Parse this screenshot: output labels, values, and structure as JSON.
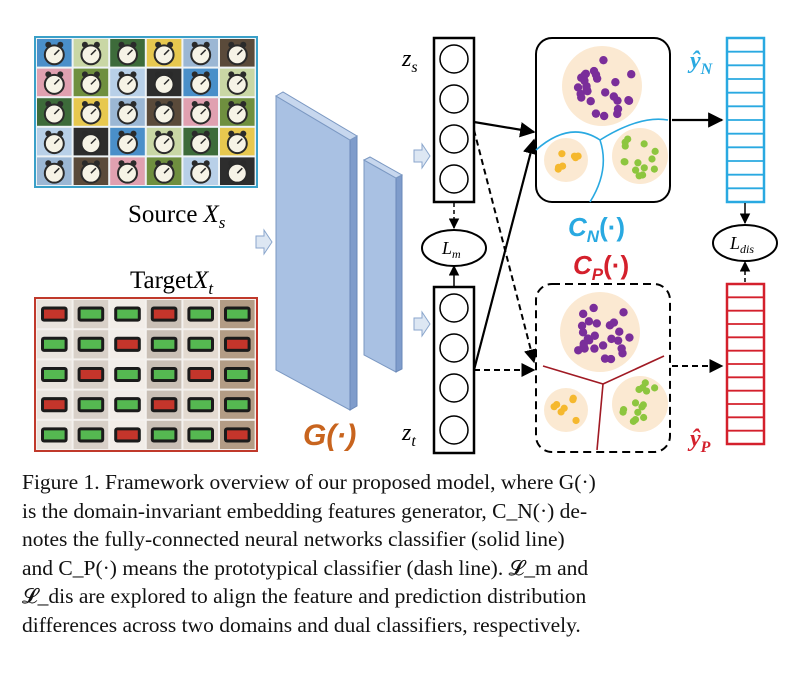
{
  "labels": {
    "source": "Source",
    "source_var": "X",
    "source_sub": "s",
    "target": "Target",
    "target_var": "X",
    "target_sub": "t",
    "generator": "G(·)",
    "zs": "z",
    "zs_sub": "s",
    "zt": "z",
    "zt_sub": "t",
    "lm": "L",
    "lm_sub": "m",
    "ldis": "L",
    "ldis_sub": "dis",
    "cn": "C",
    "cn_sub": "N",
    "cn_arg": "(·)",
    "cp": "C",
    "cp_sub": "P",
    "cp_arg": "(·)",
    "yn": "ŷ",
    "yn_sub": "N",
    "yp": "ŷ",
    "yp_sub": "P"
  },
  "colors": {
    "cn_accent": "#29a9e1",
    "cp_accent": "#d4202c",
    "generator": "#c8641e",
    "source_border": "#3aa0c8",
    "target_border": "#c0392b",
    "block_fill": "#a9c1e3",
    "cluster_purple": "#7a2e9a",
    "cluster_green": "#8dc63f",
    "cluster_orange": "#f5b82e",
    "cluster_bg": "#fbe9d2"
  },
  "caption": {
    "lines": [
      "Figure 1. Framework overview of our proposed model, where G(·)",
      "is the domain-invariant embedding features generator, C_N(·) de-",
      "notes the fully-connected neural networks classifier (solid line)",
      "and C_P(·) means the prototypical classifier (dash line). 𝓛_m and",
      "𝓛_dis are explored to align the feature and prediction distribution",
      "differences across two domains and dual classifiers, respectively."
    ]
  }
}
